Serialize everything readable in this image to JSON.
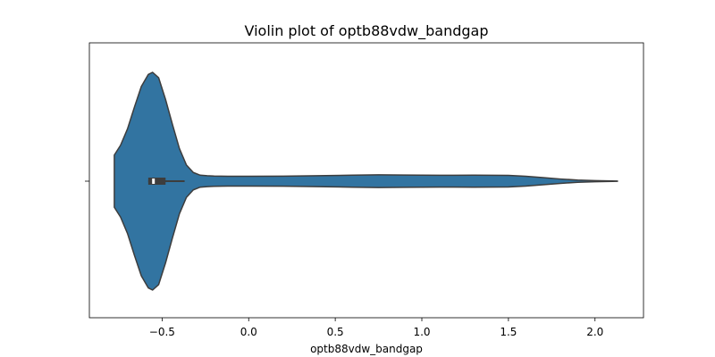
{
  "chart_data": {
    "type": "violin",
    "title": "Violin plot of optb88vdw_bandgap",
    "xlabel": "optb88vdw_bandgap",
    "ylabel": "",
    "xlim": [
      -0.92,
      2.28
    ],
    "xticks": [
      -0.5,
      0.0,
      0.5,
      1.0,
      1.5,
      2.0
    ],
    "xtick_labels": [
      "−0.5",
      "0.0",
      "0.5",
      "1.0",
      "1.5",
      "2.0"
    ],
    "grid": false,
    "legend": false,
    "series": [
      {
        "color": "#3274a1",
        "density_profile": {
          "x": [
            -0.776,
            -0.74,
            -0.7,
            -0.66,
            -0.62,
            -0.58,
            -0.555,
            -0.52,
            -0.48,
            -0.44,
            -0.4,
            -0.36,
            -0.32,
            -0.28,
            -0.24,
            -0.2,
            -0.1,
            0.0,
            0.2,
            0.4,
            0.6,
            0.75,
            0.9,
            1.1,
            1.3,
            1.5,
            1.6,
            1.7,
            1.8,
            1.9,
            2.0,
            2.1,
            2.13
          ],
          "relative_half_width": [
            0.24,
            0.33,
            0.48,
            0.68,
            0.87,
            0.98,
            1.0,
            0.95,
            0.75,
            0.52,
            0.3,
            0.15,
            0.08,
            0.055,
            0.05,
            0.047,
            0.045,
            0.045,
            0.046,
            0.05,
            0.055,
            0.058,
            0.056,
            0.054,
            0.055,
            0.053,
            0.045,
            0.033,
            0.02,
            0.01,
            0.005,
            0.0025,
            0.0015
          ]
        },
        "box": {
          "q1": -0.58,
          "median": -0.55,
          "q3": -0.48,
          "whisker_low": -0.58,
          "whisker_high": -0.37
        }
      }
    ]
  }
}
